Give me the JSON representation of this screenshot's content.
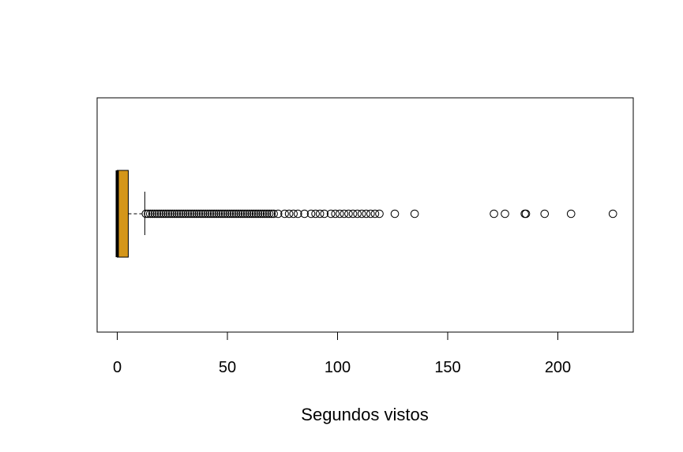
{
  "chart_data": {
    "type": "boxplot",
    "orientation": "horizontal",
    "xlabel": "Segundos vistos",
    "xlim": [
      -9,
      235
    ],
    "x_ticks": [
      0,
      50,
      100,
      150,
      200
    ],
    "x_tick_labels": [
      "0",
      "50",
      "100",
      "150",
      "200"
    ],
    "box": {
      "min": 0,
      "q1": 0,
      "median": 0,
      "q3": 5,
      "whisker_high": 12.5,
      "fill_color": "#D4961A"
    },
    "outliers": [
      13,
      14,
      15,
      16,
      17,
      18,
      19,
      20,
      21,
      22,
      23,
      24,
      25,
      26,
      27,
      28,
      29,
      30,
      31,
      32,
      33,
      34,
      35,
      36,
      37,
      38,
      39,
      40,
      41,
      42,
      43,
      44,
      45,
      46,
      47,
      48,
      49,
      50,
      51,
      52,
      53,
      54,
      55,
      56,
      57,
      58,
      59,
      60,
      61,
      62,
      63,
      64,
      65,
      66,
      67,
      68,
      69,
      70,
      71,
      73,
      76,
      78,
      80,
      82,
      85,
      88,
      90,
      92,
      94,
      97,
      99,
      101,
      103,
      105,
      107,
      109,
      111,
      113,
      115,
      117,
      119,
      126,
      135,
      171,
      176,
      185,
      185.5,
      194,
      206,
      225
    ],
    "grid": false
  }
}
